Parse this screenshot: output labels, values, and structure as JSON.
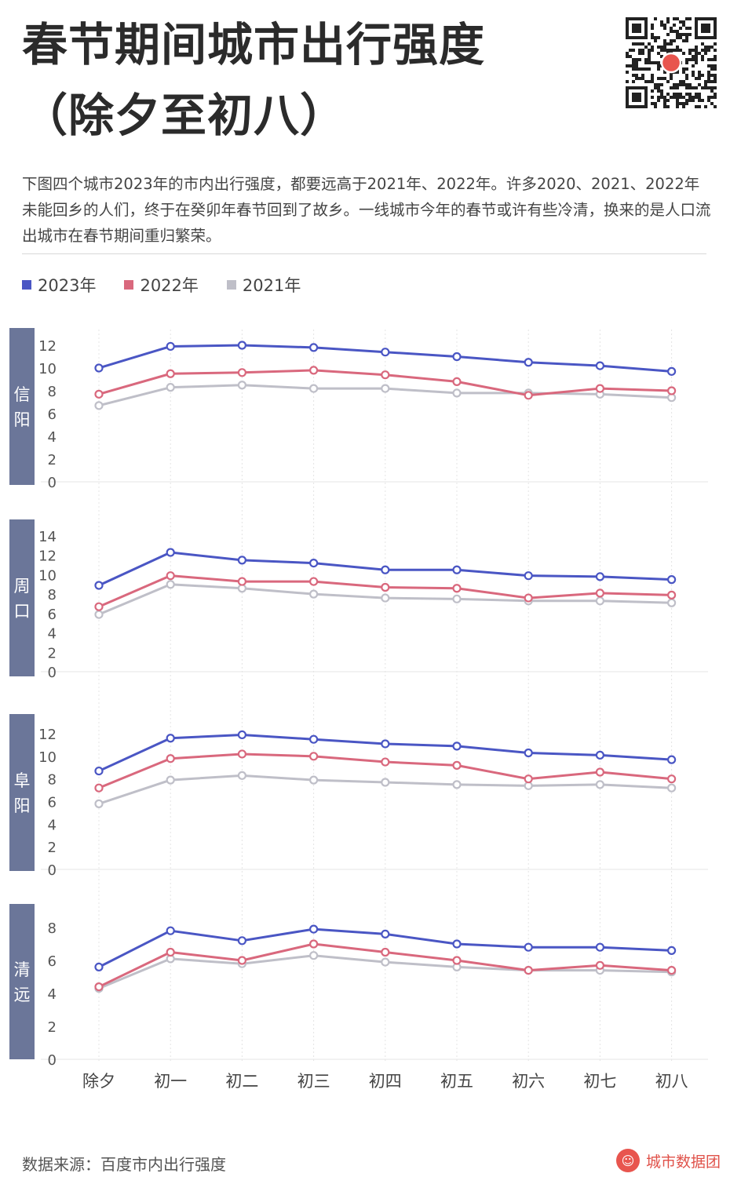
{
  "title_line1": "春节期间城市出行强度",
  "title_line2": "（除夕至初八）",
  "description": "下图四个城市2023年的市内出行强度，都要远高于2021年、2022年。许多2020、2021、2022年未能回乡的人们，终于在癸卯年春节回到了故乡。一线城市今年的春节或许有些冷清，换来的是人口流出城市在春节期间重归繁荣。",
  "legend": [
    {
      "label": "2023年",
      "color": "#4a56c4"
    },
    {
      "label": "2022年",
      "color": "#d9687d"
    },
    {
      "label": "2021年",
      "color": "#bfbfc8"
    }
  ],
  "footer": {
    "source": "数据来源：百度市内出行强度",
    "brand": "城市数据团"
  },
  "colors": {
    "panel_label_bg": "#6b7699",
    "title": "#2b2b2b"
  },
  "chart_data": {
    "type": "line",
    "categories": [
      "除夕",
      "初一",
      "初二",
      "初三",
      "初四",
      "初五",
      "初六",
      "初七",
      "初八"
    ],
    "panels": [
      {
        "city": "信阳",
        "ylim": [
          0,
          12
        ],
        "yticks": [
          0,
          2,
          4,
          6,
          8,
          10,
          12
        ],
        "series": [
          {
            "name": "2023年",
            "values": [
              10.0,
              11.9,
              12.0,
              11.8,
              11.4,
              11.0,
              10.5,
              10.2,
              9.7
            ]
          },
          {
            "name": "2022年",
            "values": [
              7.7,
              9.5,
              9.6,
              9.8,
              9.4,
              8.8,
              7.6,
              8.2,
              8.0
            ]
          },
          {
            "name": "2021年",
            "values": [
              6.7,
              8.3,
              8.5,
              8.2,
              8.2,
              7.8,
              7.8,
              7.7,
              7.4
            ]
          }
        ]
      },
      {
        "city": "周口",
        "ylim": [
          0,
          14
        ],
        "yticks": [
          0,
          2,
          4,
          6,
          8,
          10,
          12,
          14
        ],
        "series": [
          {
            "name": "2023年",
            "values": [
              8.9,
              12.3,
              11.5,
              11.2,
              10.5,
              10.5,
              9.9,
              9.8,
              9.5
            ]
          },
          {
            "name": "2022年",
            "values": [
              6.7,
              9.9,
              9.3,
              9.3,
              8.7,
              8.6,
              7.6,
              8.1,
              7.9
            ]
          },
          {
            "name": "2021年",
            "values": [
              5.9,
              9.0,
              8.6,
              8.0,
              7.6,
              7.5,
              7.3,
              7.3,
              7.1
            ]
          }
        ]
      },
      {
        "city": "阜阳",
        "ylim": [
          0,
          12
        ],
        "yticks": [
          0,
          2,
          4,
          6,
          8,
          10,
          12
        ],
        "series": [
          {
            "name": "2023年",
            "values": [
              8.7,
              11.6,
              11.9,
              11.5,
              11.1,
              10.9,
              10.3,
              10.1,
              9.7
            ]
          },
          {
            "name": "2022年",
            "values": [
              7.2,
              9.8,
              10.2,
              10.0,
              9.5,
              9.2,
              8.0,
              8.6,
              8.0
            ]
          },
          {
            "name": "2021年",
            "values": [
              5.8,
              7.9,
              8.3,
              7.9,
              7.7,
              7.5,
              7.4,
              7.5,
              7.2
            ]
          }
        ]
      },
      {
        "city": "清远",
        "ylim": [
          0,
          8
        ],
        "yticks": [
          0,
          2,
          4,
          6,
          8
        ],
        "series": [
          {
            "name": "2023年",
            "values": [
              5.6,
              7.8,
              7.2,
              7.9,
              7.6,
              7.0,
              6.8,
              6.8,
              6.6
            ]
          },
          {
            "name": "2022年",
            "values": [
              4.4,
              6.5,
              6.0,
              7.0,
              6.5,
              6.0,
              5.4,
              5.7,
              5.4
            ]
          },
          {
            "name": "2021年",
            "values": [
              4.3,
              6.1,
              5.8,
              6.3,
              5.9,
              5.6,
              5.4,
              5.4,
              5.3
            ]
          }
        ]
      }
    ]
  }
}
